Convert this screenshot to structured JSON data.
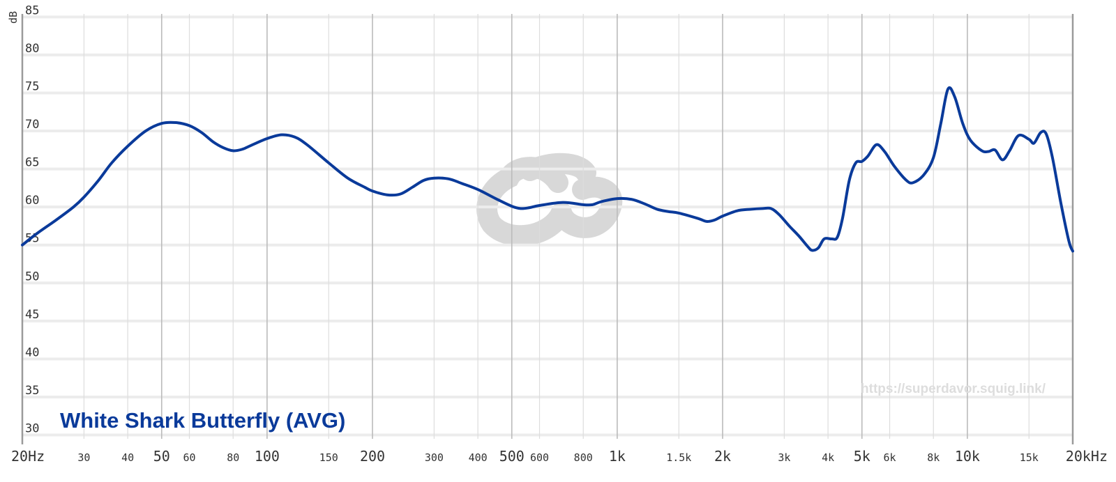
{
  "chart_data": {
    "type": "line",
    "y_unit": "dB",
    "ylim": [
      30,
      85
    ],
    "y_ticks": [
      30,
      35,
      40,
      45,
      50,
      55,
      60,
      65,
      70,
      75,
      80,
      85
    ],
    "xlim": [
      20,
      20000
    ],
    "x_scale": "log",
    "x_ticks": [
      {
        "value": 20,
        "label": "20Hz",
        "major": true
      },
      {
        "value": 30,
        "label": "30",
        "major": false
      },
      {
        "value": 40,
        "label": "40",
        "major": false
      },
      {
        "value": 50,
        "label": "50",
        "major": true
      },
      {
        "value": 60,
        "label": "60",
        "major": false
      },
      {
        "value": 80,
        "label": "80",
        "major": false
      },
      {
        "value": 100,
        "label": "100",
        "major": true
      },
      {
        "value": 150,
        "label": "150",
        "major": false
      },
      {
        "value": 200,
        "label": "200",
        "major": true
      },
      {
        "value": 300,
        "label": "300",
        "major": false
      },
      {
        "value": 400,
        "label": "400",
        "major": false
      },
      {
        "value": 500,
        "label": "500",
        "major": true
      },
      {
        "value": 600,
        "label": "600",
        "major": false
      },
      {
        "value": 800,
        "label": "800",
        "major": false
      },
      {
        "value": 1000,
        "label": "1k",
        "major": true
      },
      {
        "value": 1500,
        "label": "1.5k",
        "major": false
      },
      {
        "value": 2000,
        "label": "2k",
        "major": true
      },
      {
        "value": 3000,
        "label": "3k",
        "major": false
      },
      {
        "value": 4000,
        "label": "4k",
        "major": false
      },
      {
        "value": 5000,
        "label": "5k",
        "major": true
      },
      {
        "value": 6000,
        "label": "6k",
        "major": false
      },
      {
        "value": 8000,
        "label": "8k",
        "major": false
      },
      {
        "value": 10000,
        "label": "10k",
        "major": true
      },
      {
        "value": 15000,
        "label": "15k",
        "major": false
      },
      {
        "value": 20000,
        "label": "20kHz",
        "major": true
      }
    ],
    "grid": true,
    "legend": {
      "label": "White Shark Butterfly (AVG)",
      "placement": "bottom-left"
    },
    "watermark_url": "https://superdavor.squig.link/",
    "series": [
      {
        "name": "White Shark Butterfly (AVG)",
        "color": "#0a3a9a",
        "points": [
          [
            20,
            55.0
          ],
          [
            22,
            56.5
          ],
          [
            25,
            58.3
          ],
          [
            28,
            60.0
          ],
          [
            30,
            61.3
          ],
          [
            33,
            63.5
          ],
          [
            36,
            65.8
          ],
          [
            40,
            68.0
          ],
          [
            45,
            70.0
          ],
          [
            50,
            71.0
          ],
          [
            55,
            71.1
          ],
          [
            60,
            70.7
          ],
          [
            65,
            69.8
          ],
          [
            70,
            68.6
          ],
          [
            75,
            67.8
          ],
          [
            80,
            67.4
          ],
          [
            85,
            67.6
          ],
          [
            90,
            68.1
          ],
          [
            100,
            69.0
          ],
          [
            110,
            69.5
          ],
          [
            120,
            69.2
          ],
          [
            130,
            68.2
          ],
          [
            150,
            65.8
          ],
          [
            170,
            63.8
          ],
          [
            190,
            62.6
          ],
          [
            200,
            62.1
          ],
          [
            220,
            61.6
          ],
          [
            240,
            61.7
          ],
          [
            260,
            62.6
          ],
          [
            280,
            63.5
          ],
          [
            300,
            63.8
          ],
          [
            330,
            63.7
          ],
          [
            360,
            63.1
          ],
          [
            400,
            62.3
          ],
          [
            450,
            61.1
          ],
          [
            500,
            60.1
          ],
          [
            530,
            59.8
          ],
          [
            560,
            59.9
          ],
          [
            600,
            60.2
          ],
          [
            700,
            60.6
          ],
          [
            800,
            60.3
          ],
          [
            850,
            60.3
          ],
          [
            900,
            60.7
          ],
          [
            1000,
            61.1
          ],
          [
            1100,
            61.0
          ],
          [
            1200,
            60.4
          ],
          [
            1300,
            59.7
          ],
          [
            1400,
            59.4
          ],
          [
            1500,
            59.2
          ],
          [
            1700,
            58.5
          ],
          [
            1800,
            58.1
          ],
          [
            1900,
            58.3
          ],
          [
            2000,
            58.8
          ],
          [
            2200,
            59.5
          ],
          [
            2400,
            59.7
          ],
          [
            2600,
            59.8
          ],
          [
            2750,
            59.8
          ],
          [
            2900,
            59.0
          ],
          [
            3100,
            57.5
          ],
          [
            3300,
            56.2
          ],
          [
            3500,
            54.8
          ],
          [
            3600,
            54.3
          ],
          [
            3750,
            54.6
          ],
          [
            3900,
            55.8
          ],
          [
            4100,
            55.8
          ],
          [
            4250,
            56.0
          ],
          [
            4400,
            58.5
          ],
          [
            4600,
            63.5
          ],
          [
            4800,
            65.8
          ],
          [
            5000,
            66.0
          ],
          [
            5200,
            66.7
          ],
          [
            5500,
            68.2
          ],
          [
            5800,
            67.3
          ],
          [
            6200,
            65.3
          ],
          [
            6700,
            63.5
          ],
          [
            7000,
            63.2
          ],
          [
            7500,
            64.2
          ],
          [
            8000,
            66.5
          ],
          [
            8400,
            71.0
          ],
          [
            8800,
            75.5
          ],
          [
            9200,
            74.5
          ],
          [
            9700,
            71.0
          ],
          [
            10200,
            68.8
          ],
          [
            11000,
            67.4
          ],
          [
            11500,
            67.3
          ],
          [
            12000,
            67.5
          ],
          [
            12600,
            66.2
          ],
          [
            13200,
            67.4
          ],
          [
            14000,
            69.4
          ],
          [
            15000,
            68.9
          ],
          [
            15500,
            68.4
          ],
          [
            16200,
            69.8
          ],
          [
            16800,
            69.6
          ],
          [
            17500,
            66.5
          ],
          [
            18500,
            60.5
          ],
          [
            19500,
            55.5
          ],
          [
            20000,
            54.2
          ]
        ]
      }
    ]
  }
}
